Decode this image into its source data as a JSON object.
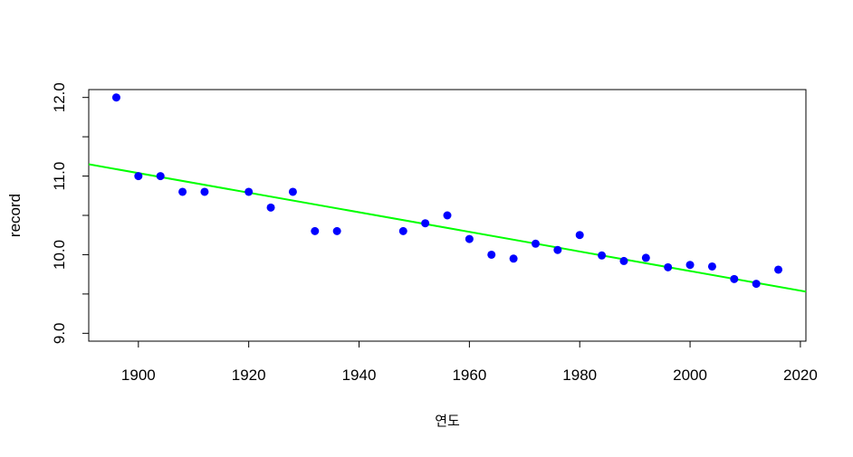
{
  "chart_data": {
    "type": "scatter",
    "title": "",
    "xlabel": "연도",
    "ylabel": "record",
    "xlim": [
      1891,
      2021
    ],
    "ylim": [
      8.9,
      12.1
    ],
    "xticks": [
      1900,
      1920,
      1940,
      1960,
      1980,
      2000,
      2020
    ],
    "yticks": [
      9.0,
      9.5,
      10.0,
      10.5,
      11.0,
      11.5,
      12.0
    ],
    "ytick_labels": [
      "9.0",
      "",
      "10.0",
      "",
      "11.0",
      "",
      "12.0"
    ],
    "grid": false,
    "legend": "none",
    "point_color": "#0000ff",
    "line_color": "#00ff00",
    "points": [
      {
        "x": 1896,
        "y": 12.0
      },
      {
        "x": 1900,
        "y": 11.0
      },
      {
        "x": 1904,
        "y": 11.0
      },
      {
        "x": 1908,
        "y": 10.8
      },
      {
        "x": 1912,
        "y": 10.8
      },
      {
        "x": 1920,
        "y": 10.8
      },
      {
        "x": 1924,
        "y": 10.6
      },
      {
        "x": 1928,
        "y": 10.8
      },
      {
        "x": 1932,
        "y": 10.3
      },
      {
        "x": 1936,
        "y": 10.3
      },
      {
        "x": 1948,
        "y": 10.3
      },
      {
        "x": 1952,
        "y": 10.4
      },
      {
        "x": 1956,
        "y": 10.5
      },
      {
        "x": 1960,
        "y": 10.2
      },
      {
        "x": 1964,
        "y": 10.0
      },
      {
        "x": 1968,
        "y": 9.95
      },
      {
        "x": 1972,
        "y": 10.14
      },
      {
        "x": 1976,
        "y": 10.06
      },
      {
        "x": 1980,
        "y": 10.25
      },
      {
        "x": 1984,
        "y": 9.99
      },
      {
        "x": 1988,
        "y": 9.92
      },
      {
        "x": 1992,
        "y": 9.96
      },
      {
        "x": 1996,
        "y": 9.84
      },
      {
        "x": 2000,
        "y": 9.87
      },
      {
        "x": 2004,
        "y": 9.85
      },
      {
        "x": 2008,
        "y": 9.69
      },
      {
        "x": 2012,
        "y": 9.63
      },
      {
        "x": 2016,
        "y": 9.81
      }
    ],
    "regression_line": {
      "x": [
        1891,
        2021
      ],
      "y": [
        11.15,
        9.53
      ]
    }
  }
}
